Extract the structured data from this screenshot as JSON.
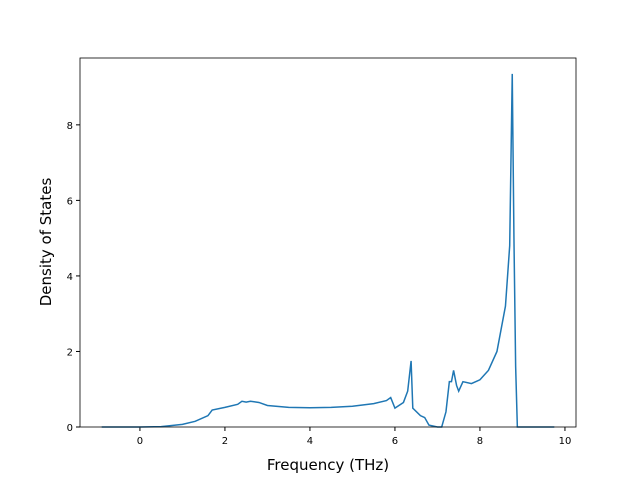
{
  "chart_data": {
    "type": "line",
    "x_label": "Frequency (THz)",
    "y_label": "Density of States",
    "x": [
      -0.9,
      0,
      0.5,
      1.0,
      1.3,
      1.6,
      1.7,
      2.0,
      2.3,
      2.4,
      2.5,
      2.6,
      2.8,
      3.0,
      3.5,
      4.0,
      4.5,
      5.0,
      5.5,
      5.8,
      5.9,
      6.0,
      6.2,
      6.3,
      6.38,
      6.42,
      6.6,
      6.7,
      6.8,
      7.0,
      7.1,
      7.2,
      7.28,
      7.33,
      7.38,
      7.45,
      7.5,
      7.6,
      7.8,
      8.0,
      8.2,
      8.4,
      8.6,
      8.7,
      8.76,
      8.8,
      8.84,
      8.88,
      9.75
    ],
    "series": [
      {
        "color": "#1f77b4",
        "values": [
          0,
          0,
          0.01,
          0.07,
          0.15,
          0.3,
          0.45,
          0.52,
          0.6,
          0.68,
          0.66,
          0.68,
          0.65,
          0.57,
          0.52,
          0.51,
          0.52,
          0.55,
          0.62,
          0.7,
          0.78,
          0.5,
          0.65,
          0.95,
          1.75,
          0.5,
          0.3,
          0.25,
          0.05,
          0.0,
          0.0,
          0.4,
          1.2,
          1.2,
          1.5,
          1.1,
          0.95,
          1.2,
          1.15,
          1.25,
          1.5,
          2.0,
          3.2,
          4.8,
          9.35,
          5,
          1.6,
          0,
          0
        ]
      }
    ],
    "xlim": [
      -1.41,
      10.26
    ],
    "ylim": [
      0,
      9.77
    ],
    "xticks": [
      0,
      2,
      4,
      6,
      8,
      10
    ],
    "yticks": [
      0,
      2,
      4,
      6,
      8
    ]
  }
}
